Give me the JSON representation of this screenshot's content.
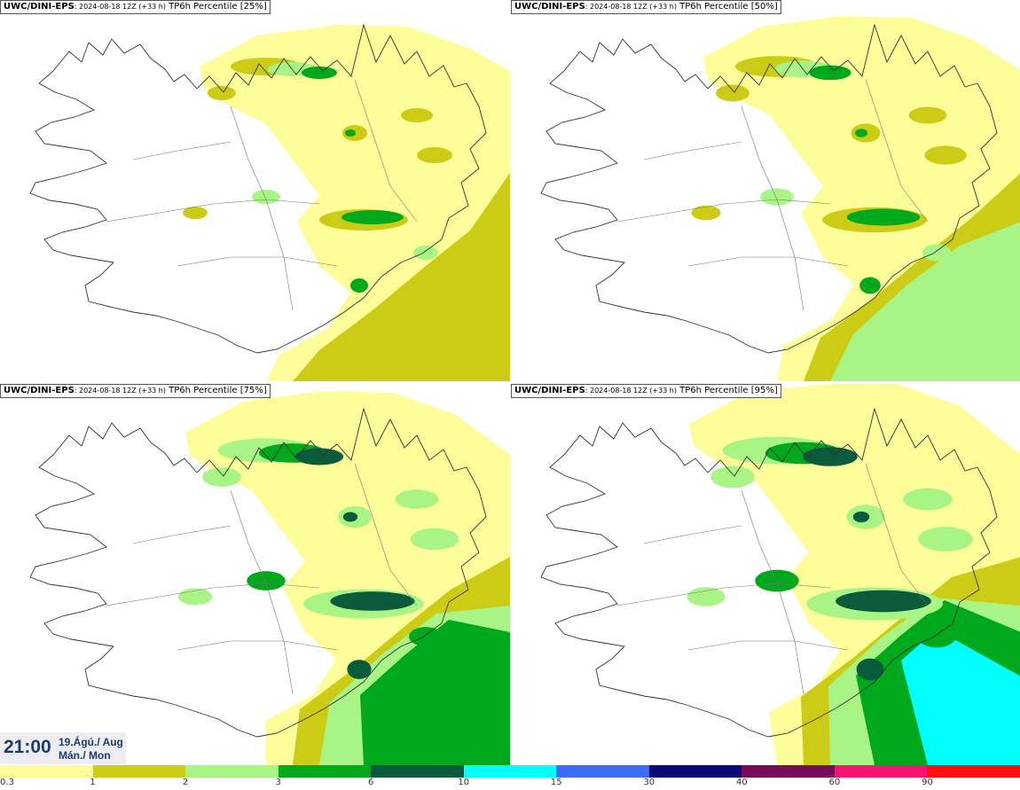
{
  "panels": [
    {
      "model": "UWC/DINI-EPS",
      "meta": ": 2024-08-18 12Z (+33 h)",
      "product": " TP6h Percentile [25%]",
      "level": 0
    },
    {
      "model": "UWC/DINI-EPS",
      "meta": ": 2024-08-18 12Z (+33 h)",
      "product": " TP6h Percentile [50%]",
      "level": 1
    },
    {
      "model": "UWC/DINI-EPS",
      "meta": ": 2024-08-18 12Z (+33 h)",
      "product": " TP6h Percentile [75%]",
      "level": 2
    },
    {
      "model": "UWC/DINI-EPS",
      "meta": ": 2024-08-18 12Z (+33 h)",
      "product": " TP6h Percentile [95%]",
      "level": 3
    }
  ],
  "valid_time": {
    "time": "21:00",
    "date": "19.Ágú./ Aug",
    "day": "Mán./ Mon"
  },
  "legend": {
    "labels": [
      "0.3",
      "1",
      "2",
      "3",
      "6",
      "10",
      "15",
      "30",
      "40",
      "60",
      "90"
    ],
    "colors": [
      "#fdfd9a",
      "#cccc16",
      "#a8f585",
      "#00a81c",
      "#0a5b3c",
      "#00ffff",
      "#3a6cf6",
      "#0a0a7a",
      "#7a0a5a",
      "#f7146f",
      "#ff0f0f"
    ]
  }
}
